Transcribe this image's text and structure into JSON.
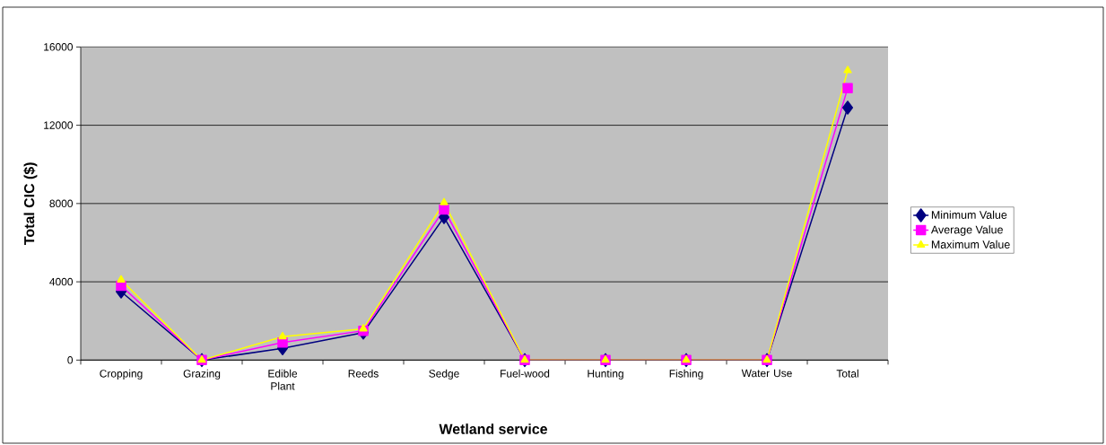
{
  "chart_data": {
    "type": "line",
    "xlabel": "Wetland service",
    "ylabel": "Total CIC ($)",
    "categories": [
      "Cropping",
      "Grazing",
      "Edible Plant",
      "Reeds",
      "Sedge",
      "Fuel-wood",
      "Hunting",
      "Fishing",
      "Water Use",
      "Total"
    ],
    "series": [
      {
        "name": "Minimum Value",
        "color": "#000080",
        "marker": "diamond",
        "values": [
          3500,
          0,
          600,
          1400,
          7300,
          0,
          0,
          0,
          0,
          12900
        ]
      },
      {
        "name": "Average Value",
        "color": "#ff00ff",
        "marker": "square",
        "values": [
          3800,
          0,
          900,
          1500,
          7700,
          0,
          0,
          0,
          0,
          13900
        ]
      },
      {
        "name": "Maximum Value",
        "color": "#ffff00",
        "marker": "triangle",
        "values": [
          4100,
          0,
          1200,
          1600,
          8050,
          0,
          0,
          0,
          0,
          14800
        ]
      }
    ],
    "ylim": [
      0,
      16000
    ],
    "yticks": [
      0,
      4000,
      8000,
      12000,
      16000
    ],
    "grid": "y",
    "legend": "right"
  }
}
